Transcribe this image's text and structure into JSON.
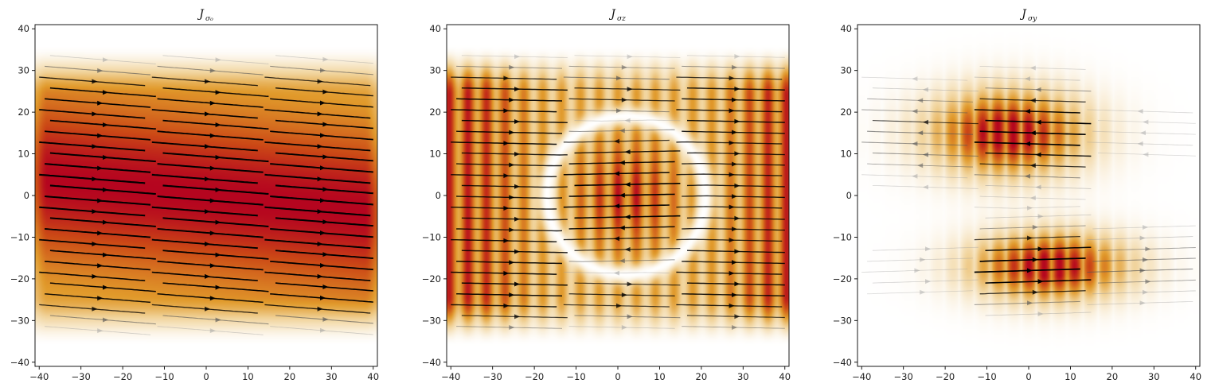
{
  "chart_data": [
    {
      "type": "heatmap",
      "title": "J",
      "title_subscript": "σ₀",
      "xlim": [
        -41,
        41
      ],
      "ylim": [
        -41,
        41
      ],
      "xticks": [
        -40,
        -30,
        -20,
        -10,
        0,
        10,
        20,
        30,
        40
      ],
      "yticks": [
        -40,
        -30,
        -20,
        -10,
        0,
        10,
        20,
        30,
        40
      ],
      "overlay": "streamlines",
      "colormap": "white-orange-red",
      "field": {
        "pattern": "uniform",
        "flow_direction": "right",
        "tilt": -0.08
      }
    },
    {
      "type": "heatmap",
      "title": "J",
      "title_subscript": "σz",
      "xlim": [
        -41,
        41
      ],
      "ylim": [
        -41,
        41
      ],
      "xticks": [
        -40,
        -30,
        -20,
        -10,
        0,
        10,
        20,
        30,
        40
      ],
      "yticks": [
        -40,
        -30,
        -20,
        -10,
        0,
        10,
        20,
        30,
        40
      ],
      "overlay": "streamlines",
      "colormap": "white-orange-red",
      "field": {
        "pattern": "ring",
        "inner_flow_direction": "left",
        "outer_flow_direction": "right",
        "ring_center": [
          2,
          0
        ],
        "ring_radius": 19
      }
    },
    {
      "type": "heatmap",
      "title": "J",
      "title_subscript": "σy",
      "xlim": [
        -41,
        41
      ],
      "ylim": [
        -41,
        41
      ],
      "xticks": [
        -40,
        -30,
        -20,
        -10,
        0,
        10,
        20,
        30,
        40
      ],
      "yticks": [
        -40,
        -30,
        -20,
        -10,
        0,
        10,
        20,
        30,
        40
      ],
      "overlay": "streamlines",
      "colormap": "white-orange-red",
      "field": {
        "pattern": "two-lobe",
        "upper_lobe_center": [
          -5,
          15
        ],
        "upper_flow_direction": "left",
        "lower_lobe_center": [
          5,
          -17
        ],
        "lower_flow_direction": "right"
      }
    }
  ]
}
